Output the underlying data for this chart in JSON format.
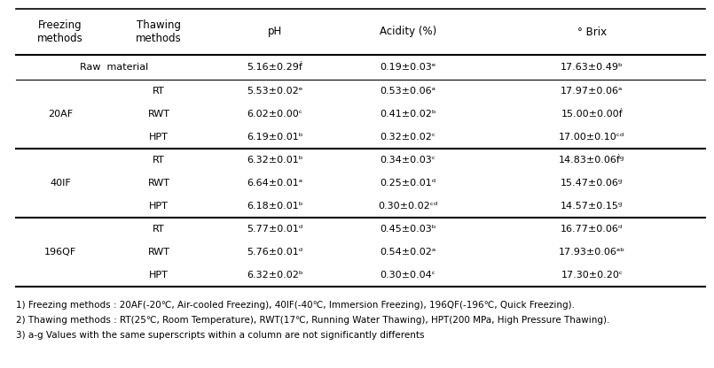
{
  "headers": [
    "Freezing\nmethods",
    "Thawing\nmethods",
    "pH",
    "Acidity (%)",
    "° Brix"
  ],
  "col_aligns": [
    "center",
    "center",
    "center",
    "center",
    "center"
  ],
  "rows": [
    {
      "freeze": "Raw  material",
      "thaw": null,
      "pH": "5.16±0.29ḟ",
      "acid": "0.19±0.03ᵉ",
      "brix": "17.63±0.49ᵇ"
    },
    {
      "freeze": "20AF",
      "thaw": "RT",
      "pH": "5.53±0.02ᵉ",
      "acid": "0.53±0.06ᵃ",
      "brix": "17.97±0.06ᵃ"
    },
    {
      "freeze": "20AF",
      "thaw": "RWT",
      "pH": "6.02±0.00ᶜ",
      "acid": "0.41±0.02ᵇ",
      "brix": "15.00±0.00ḟ"
    },
    {
      "freeze": "20AF",
      "thaw": "HPT",
      "pH": "6.19±0.01ᵇ",
      "acid": "0.32±0.02ᶜ",
      "brix": "17.00±0.10ᶜᵈ"
    },
    {
      "freeze": "40IF",
      "thaw": "RT",
      "pH": "6.32±0.01ᵇ",
      "acid": "0.34±0.03ᶜ",
      "brix": "14.83±0.06ḟᵍ"
    },
    {
      "freeze": "40IF",
      "thaw": "RWT",
      "pH": "6.64±0.01ᵃ",
      "acid": "0.25±0.01ᵈ",
      "brix": "15.47±0.06ᵍ"
    },
    {
      "freeze": "40IF",
      "thaw": "HPT",
      "pH": "6.18±0.01ᵇ",
      "acid": "0.30±0.02ᶜᵈ",
      "brix": "14.57±0.15ᵍ"
    },
    {
      "freeze": "196QF",
      "thaw": "RT",
      "pH": "5.77±0.01ᵈ",
      "acid": "0.45±0.03ᵇ",
      "brix": "16.77±0.06ᵈ"
    },
    {
      "freeze": "196QF",
      "thaw": "RWT",
      "pH": "5.76±0.01ᵈ",
      "acid": "0.54±0.02ᵃ",
      "brix": "17.93±0.06ᵃᵇ"
    },
    {
      "freeze": "196QF",
      "thaw": "HPT",
      "pH": "6.32±0.02ᵇ",
      "acid": "0.30±0.04ᶜ",
      "brix": "17.30±0.20ᶜ"
    }
  ],
  "footnotes": [
    "1) Freezing methods : 20AF(-20℃, Air-cooled Freezing), 40IF(-40℃, Immersion Freezing), 196QF(-196℃, Quick Freezing).",
    "2) Thawing methods : RT(25℃, Room Temperature), RWT(17℃, Running Water Thawing), HPT(200 MPa, High Pressure Thawing).",
    "3) a-g Values with the same superscripts within a column are not significantly differents"
  ],
  "bg_color": "#ffffff",
  "text_color": "#000000",
  "font_size": 8.0,
  "header_font_size": 8.5,
  "footnote_font_size": 7.5
}
